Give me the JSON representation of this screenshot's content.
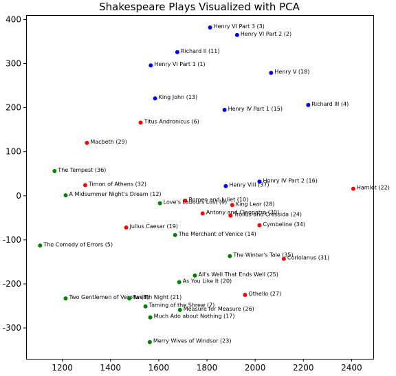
{
  "chart_data": {
    "type": "scatter",
    "title": "Shakespeare Plays Visualized with PCA",
    "xlabel": "",
    "ylabel": "",
    "xlim": [
      1050,
      2490
    ],
    "ylim": [
      -370,
      410
    ],
    "x_ticks": [
      1200,
      1400,
      1600,
      1800,
      2000,
      2200,
      2400
    ],
    "y_ticks": [
      -300,
      -200,
      -100,
      0,
      100,
      200,
      300,
      400
    ],
    "grid": false,
    "colors": {
      "history": "#0000ff",
      "tragedy": "#ff0000",
      "comedy": "#008000"
    },
    "points": [
      {
        "label": "Henry VI Part 3 (3)",
        "x": 1813,
        "y": 382,
        "group": "history"
      },
      {
        "label": "Henry VI Part 2 (2)",
        "x": 1925,
        "y": 365,
        "group": "history"
      },
      {
        "label": "Richard II (11)",
        "x": 1677,
        "y": 326,
        "group": "history"
      },
      {
        "label": "Henry VI Part 1 (1)",
        "x": 1567,
        "y": 296,
        "group": "history"
      },
      {
        "label": "Henry V (18)",
        "x": 2066,
        "y": 279,
        "group": "history"
      },
      {
        "label": "King John (13)",
        "x": 1585,
        "y": 221,
        "group": "history"
      },
      {
        "label": "Richard III (4)",
        "x": 2220,
        "y": 206,
        "group": "history"
      },
      {
        "label": "Henry IV Part 1 (15)",
        "x": 1873,
        "y": 195,
        "group": "history"
      },
      {
        "label": "Titus Andronicus (6)",
        "x": 1525,
        "y": 166,
        "group": "tragedy"
      },
      {
        "label": "Macbeth (29)",
        "x": 1302,
        "y": 120,
        "group": "tragedy"
      },
      {
        "label": "The Tempest (36)",
        "x": 1168,
        "y": 56,
        "group": "comedy"
      },
      {
        "label": "Henry IV Part 2 (16)",
        "x": 2018,
        "y": 32,
        "group": "history"
      },
      {
        "label": "Timon of Athens (32)",
        "x": 1295,
        "y": 24,
        "group": "tragedy"
      },
      {
        "label": "Henry VIII (37)",
        "x": 1878,
        "y": 22,
        "group": "history"
      },
      {
        "label": "Hamlet (22)",
        "x": 2407,
        "y": 16,
        "group": "tragedy"
      },
      {
        "label": "A Midsummer Night's Dream (12)",
        "x": 1214,
        "y": 1,
        "group": "comedy"
      },
      {
        "label": "Romeo and Juliet (10)",
        "x": 1710,
        "y": -11,
        "group": "tragedy"
      },
      {
        "label": "Love's Labours Lost (9)",
        "x": 1605,
        "y": -17,
        "group": "comedy"
      },
      {
        "label": "King Lear (28)",
        "x": 1905,
        "y": -21,
        "group": "tragedy"
      },
      {
        "label": "Antony and Cleopatra (30)",
        "x": 1782,
        "y": -40,
        "group": "tragedy"
      },
      {
        "label": "Troilus and Cressida (24)",
        "x": 1898,
        "y": -45,
        "group": "tragedy"
      },
      {
        "label": "Cymbeline (34)",
        "x": 2018,
        "y": -67,
        "group": "tragedy"
      },
      {
        "label": "Julius Caesar (19)",
        "x": 1465,
        "y": -72,
        "group": "tragedy"
      },
      {
        "label": "The Merchant of Venice (14)",
        "x": 1668,
        "y": -89,
        "group": "comedy"
      },
      {
        "label": "The Comedy of Errors (5)",
        "x": 1108,
        "y": -113,
        "group": "comedy"
      },
      {
        "label": "The Winter's Tale (35)",
        "x": 1895,
        "y": -137,
        "group": "comedy"
      },
      {
        "label": "Coriolanus (31)",
        "x": 2119,
        "y": -143,
        "group": "tragedy"
      },
      {
        "label": "All's Well That Ends Well (25)",
        "x": 1750,
        "y": -181,
        "group": "comedy"
      },
      {
        "label": "As You Like It (20)",
        "x": 1685,
        "y": -196,
        "group": "comedy"
      },
      {
        "label": "Othello (27)",
        "x": 1958,
        "y": -225,
        "group": "tragedy"
      },
      {
        "label": "Two Gentlemen of Verona (8)",
        "x": 1214,
        "y": -233,
        "group": "comedy"
      },
      {
        "label": "Twelfth Night (21)",
        "x": 1478,
        "y": -233,
        "group": "comedy"
      },
      {
        "label": "Taming of the Shrew (7)",
        "x": 1545,
        "y": -251,
        "group": "comedy"
      },
      {
        "label": "Measure for Measure (26)",
        "x": 1688,
        "y": -259,
        "group": "comedy"
      },
      {
        "label": "Much Ado about Nothing (17)",
        "x": 1565,
        "y": -276,
        "group": "comedy"
      },
      {
        "label": "Merry Wives of Windsor (23)",
        "x": 1563,
        "y": -332,
        "group": "comedy"
      }
    ]
  }
}
